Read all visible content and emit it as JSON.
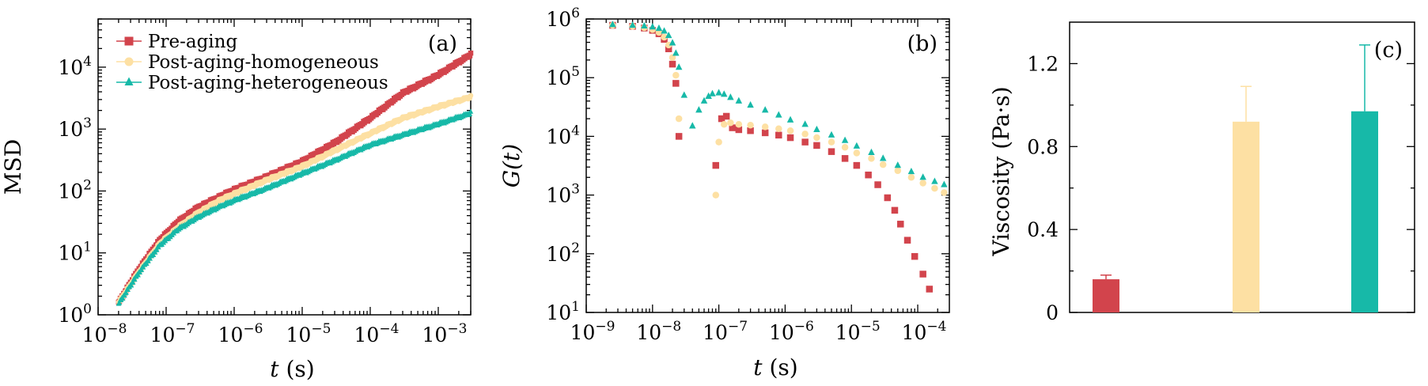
{
  "colors": {
    "pre_aging": "#d2444c",
    "post_aging_homogeneous": "#fde0a3",
    "post_aging_heterogeneous": "#17b9a8"
  },
  "chart_data": [
    {
      "type": "line",
      "panel_label": "(a)",
      "xlabel_var": "t",
      "xlabel_unit": " (s)",
      "ylabel": "MSD",
      "xscale": "log",
      "yscale": "log",
      "xlim": [
        1e-08,
        0.003
      ],
      "ylim": [
        1,
        60000.0
      ],
      "xticks": [
        {
          "base": "10",
          "exp": "−8",
          "value": 1e-08
        },
        {
          "base": "10",
          "exp": "−7",
          "value": 1e-07
        },
        {
          "base": "10",
          "exp": "−6",
          "value": 1e-06
        },
        {
          "base": "10",
          "exp": "−5",
          "value": 1e-05
        },
        {
          "base": "10",
          "exp": "−4",
          "value": 0.0001
        },
        {
          "base": "10",
          "exp": "−3",
          "value": 0.001
        }
      ],
      "yticks": [
        {
          "base": "10",
          "exp": "0",
          "value": 1
        },
        {
          "base": "10",
          "exp": "1",
          "value": 10
        },
        {
          "base": "10",
          "exp": "2",
          "value": 100
        },
        {
          "base": "10",
          "exp": "3",
          "value": 1000
        },
        {
          "base": "10",
          "exp": "4",
          "value": 10000
        }
      ],
      "legend_position": "top-left",
      "series": [
        {
          "name": "Pre-aging",
          "marker": "square",
          "x": [
            2e-08,
            4e-08,
            8e-08,
            1.5e-07,
            3e-07,
            6e-07,
            1e-06,
            3e-06,
            1e-05,
            3e-05,
            0.0001,
            0.0003,
            0.001,
            0.003
          ],
          "y": [
            1.6,
            5.5,
            16,
            32,
            55,
            80,
            105,
            170,
            300,
            600,
            1500,
            3800,
            7500,
            16000
          ]
        },
        {
          "name": "Post-aging-homogeneous",
          "marker": "circle",
          "x": [
            2e-08,
            4e-08,
            8e-08,
            1.5e-07,
            3e-07,
            6e-07,
            1e-06,
            3e-06,
            1e-05,
            3e-05,
            0.0001,
            0.0003,
            0.001,
            0.003
          ],
          "y": [
            1.6,
            5,
            14,
            26,
            45,
            70,
            90,
            150,
            250,
            450,
            850,
            1500,
            2300,
            3300
          ]
        },
        {
          "name": "Post-aging-heterogeneous",
          "marker": "triangle",
          "x": [
            2e-08,
            4e-08,
            8e-08,
            1.5e-07,
            3e-07,
            6e-07,
            1e-06,
            3e-06,
            1e-05,
            3e-05,
            0.0001,
            0.0003,
            0.001,
            0.003
          ],
          "y": [
            1.5,
            4.8,
            13,
            24,
            38,
            55,
            70,
            110,
            190,
            310,
            550,
            800,
            1200,
            1800
          ]
        }
      ]
    },
    {
      "type": "scatter",
      "panel_label": "(b)",
      "xlabel_var": "t",
      "xlabel_unit": " (s)",
      "ylabel_text": "G(t)",
      "xscale": "log",
      "yscale": "log",
      "xlim": [
        1e-09,
        0.0003
      ],
      "ylim": [
        10,
        1000000.0
      ],
      "xticks": [
        {
          "base": "10",
          "exp": "−9",
          "value": 1e-09
        },
        {
          "base": "10",
          "exp": "−8",
          "value": 1e-08
        },
        {
          "base": "10",
          "exp": "−7",
          "value": 1e-07
        },
        {
          "base": "10",
          "exp": "−6",
          "value": 1e-06
        },
        {
          "base": "10",
          "exp": "−5",
          "value": 1e-05
        },
        {
          "base": "10",
          "exp": "−4",
          "value": 0.0001
        }
      ],
      "yticks": [
        {
          "base": "10",
          "exp": "1",
          "value": 10
        },
        {
          "base": "10",
          "exp": "2",
          "value": 100
        },
        {
          "base": "10",
          "exp": "3",
          "value": 1000
        },
        {
          "base": "10",
          "exp": "4",
          "value": 10000
        },
        {
          "base": "10",
          "exp": "5",
          "value": 100000
        },
        {
          "base": "10",
          "exp": "6",
          "value": 1000000
        }
      ],
      "series": [
        {
          "name": "Pre-aging",
          "marker": "square",
          "x": [
            2.5e-09,
            5e-09,
            7.5e-09,
            1e-08,
            1.25e-08,
            1.5e-08,
            1.75e-08,
            2e-08,
            2.25e-08,
            2.5e-08,
            9e-08,
            1.1e-07,
            1.3e-07,
            1.6e-07,
            2e-07,
            3e-07,
            5e-07,
            8e-07,
            1.2e-06,
            2e-06,
            3e-06,
            5e-06,
            8e-06,
            1.2e-05,
            1.8e-05,
            2.5e-05,
            3.5e-05,
            4.5e-05,
            5.5e-05,
            7e-05,
            9e-05,
            0.00012,
            0.00015
          ],
          "y": [
            780000,
            750000,
            700000,
            640000,
            560000,
            450000,
            310000,
            170000,
            80000,
            10000,
            3200,
            20000,
            22000,
            14000,
            13000,
            12500,
            11500,
            10500,
            9500,
            8000,
            7000,
            5500,
            4200,
            3200,
            2200,
            1500,
            900,
            550,
            320,
            170,
            90,
            45,
            25
          ]
        },
        {
          "name": "Post-aging-homogeneous",
          "marker": "circle",
          "x": [
            2.5e-09,
            5e-09,
            7.5e-09,
            1e-08,
            1.25e-08,
            1.5e-08,
            1.75e-08,
            2e-08,
            2.25e-08,
            2.5e-08,
            9e-08,
            1e-07,
            1.2e-07,
            1.5e-07,
            2e-07,
            3e-07,
            5e-07,
            8e-07,
            1.2e-06,
            2e-06,
            3e-06,
            5e-06,
            8e-06,
            1.2e-05,
            2e-05,
            3e-05,
            5e-05,
            8e-05,
            0.00012,
            0.00018,
            0.00025
          ],
          "y": [
            780000,
            750000,
            710000,
            660000,
            590000,
            490000,
            360000,
            220000,
            110000,
            20000,
            1000,
            8000,
            16000,
            17000,
            16000,
            15500,
            14500,
            13500,
            12500,
            11000,
            9500,
            8000,
            6500,
            5200,
            4200,
            3300,
            2600,
            2000,
            1600,
            1300,
            1100
          ]
        },
        {
          "name": "Post-aging-heterogeneous",
          "marker": "triangle",
          "x": [
            2.5e-09,
            5e-09,
            7.5e-09,
            1e-08,
            1.25e-08,
            1.5e-08,
            1.75e-08,
            2e-08,
            2.25e-08,
            2.5e-08,
            3e-08,
            4e-08,
            5e-08,
            6e-08,
            7e-08,
            8e-08,
            1e-07,
            1.2e-07,
            1.5e-07,
            2e-07,
            3e-07,
            5e-07,
            8e-07,
            1.2e-06,
            2e-06,
            3e-06,
            5e-06,
            8e-06,
            1.2e-05,
            2e-05,
            3e-05,
            5e-05,
            8e-05,
            0.00012,
            0.00018,
            0.00025
          ],
          "y": [
            800000,
            780000,
            760000,
            730000,
            690000,
            620000,
            520000,
            390000,
            260000,
            150000,
            50000,
            15000,
            28000,
            40000,
            48000,
            53000,
            55000,
            52000,
            46000,
            40000,
            34000,
            28000,
            23000,
            19000,
            16000,
            13000,
            10500,
            8500,
            6800,
            5300,
            4200,
            3200,
            2500,
            2000,
            1700,
            1500
          ]
        }
      ]
    },
    {
      "type": "bar",
      "panel_label": "(c)",
      "ylabel": "Viscosity (Pa·s)",
      "ylim": [
        0,
        1.4
      ],
      "yticks": [
        {
          "label": "0",
          "value": 0
        },
        {
          "label": "0.4",
          "value": 0.4
        },
        {
          "label": "0.8",
          "value": 0.8
        },
        {
          "label": "1.2",
          "value": 1.2
        }
      ],
      "categories": [
        "Pre-aging",
        "Post-aging-homogeneous",
        "Post-aging-heterogeneous"
      ],
      "values": [
        0.16,
        0.92,
        0.97
      ],
      "errors": [
        0.02,
        0.17,
        0.32
      ]
    }
  ]
}
